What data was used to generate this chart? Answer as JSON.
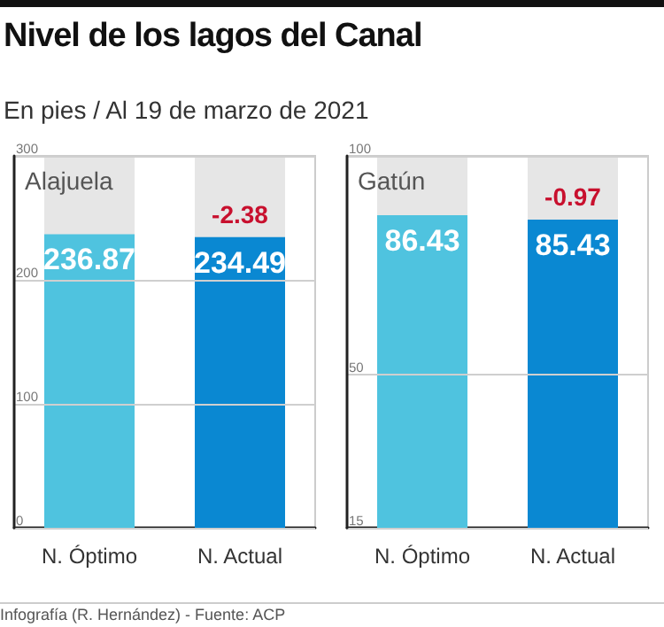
{
  "chart_data": [
    {
      "type": "other",
      "title": "Nivel de los lagos del Canal",
      "subtitle": "En pies / Al 19 de marzo de 2021",
      "annotations": [
        "Infografía (R. Hernández) - Fuente: ACP"
      ]
    },
    {
      "type": "bar",
      "title": "Alajuela",
      "categories": [
        "N. Óptimo",
        "N. Actual"
      ],
      "values": [
        236.87,
        234.49
      ],
      "colors": [
        "#4fc3df",
        "#0a88d2"
      ],
      "ylim": [
        0,
        300
      ],
      "yticks": [
        0,
        100,
        200,
        300
      ],
      "grid": "y",
      "data_labels": true,
      "annotations": [
        {
          "text": "-2.38",
          "x": "N. Actual",
          "y": 234.49
        }
      ]
    },
    {
      "type": "bar",
      "title": "Gatún",
      "categories": [
        "N. Óptimo",
        "N. Actual"
      ],
      "values": [
        86.43,
        85.43
      ],
      "colors": [
        "#4fc3df",
        "#0a88d2"
      ],
      "ylim": [
        15,
        100
      ],
      "yticks": [
        15,
        50,
        100
      ],
      "grid": "y",
      "data_labels": true,
      "annotations": [
        {
          "text": "-0.97",
          "x": "N. Actual",
          "y": 85.43
        }
      ]
    }
  ]
}
